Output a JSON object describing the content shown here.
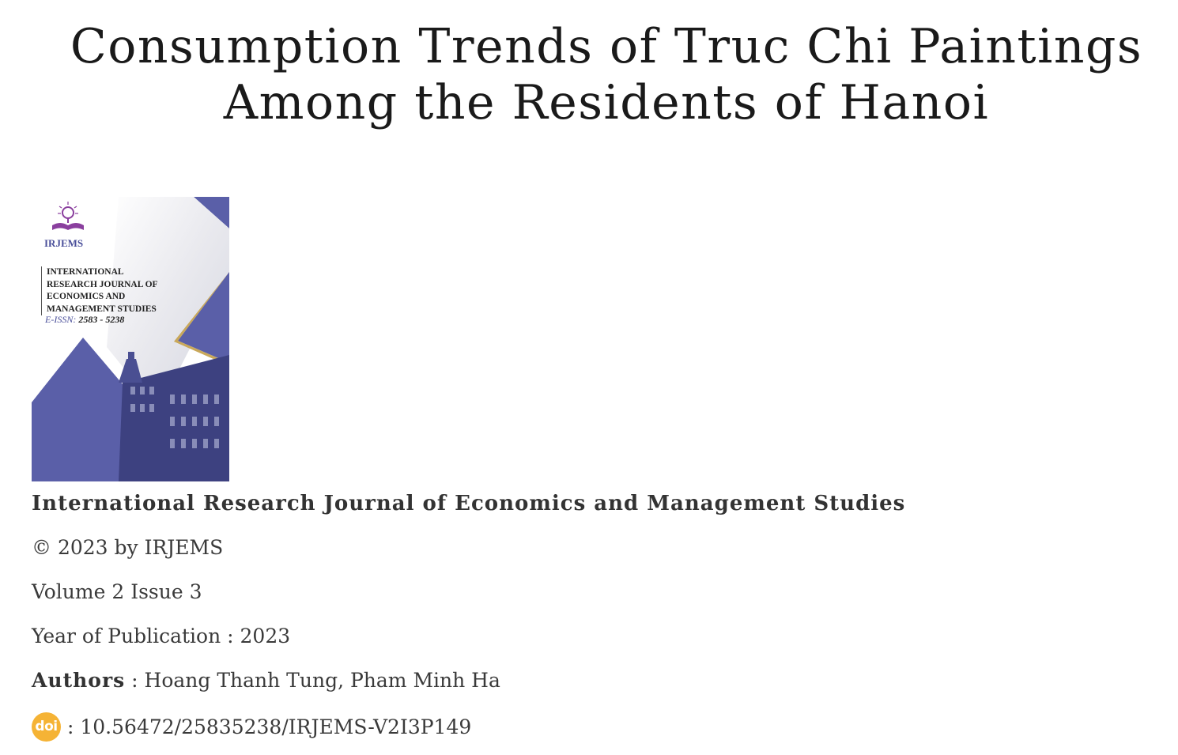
{
  "title_line1": "Consumption Trends of Truc Chi Paintings",
  "title_line2": "Among the Residents of Hanoi",
  "cover": {
    "brand": "IRJEMS",
    "journal_lines": [
      "INTERNATIONAL",
      "RESEARCH JOURNAL OF",
      "ECONOMICS AND",
      "MANAGEMENT STUDIES"
    ],
    "issn_label": "E-ISSN:",
    "issn_value": "2583 - 5238",
    "accent_color": "#5a5fa8"
  },
  "journal_name": "International Research Journal of Economics and Management Studies",
  "copyright": "© 2023 by IRJEMS",
  "volume": "Volume 2  Issue 3",
  "year": "Year of Publication : 2023",
  "authors": {
    "label": "Authors",
    "separator": " : ",
    "names": "Hoang Thanh Tung, Pham Minh Ha"
  },
  "doi": {
    "icon": "doi-icon",
    "icon_text": "doi",
    "icon_color": "#f5b335",
    "value": ": 10.56472/25835238/IRJEMS-V2I3P149"
  }
}
